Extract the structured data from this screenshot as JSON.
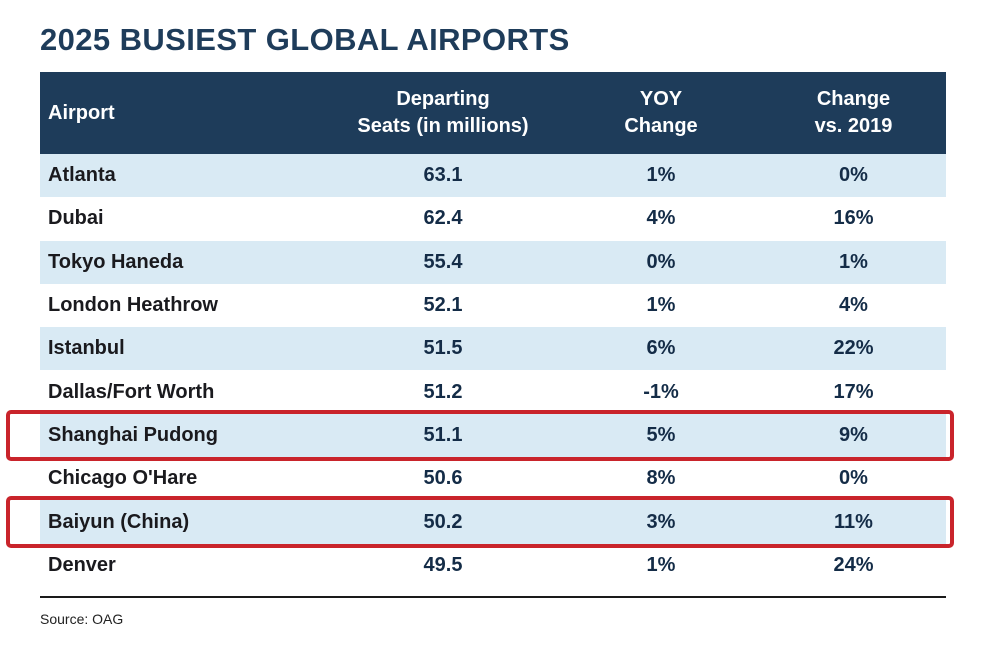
{
  "colors": {
    "header-bg": "#1e3c5a",
    "row-alt": "#d9eaf4",
    "highlight": "#c9242b",
    "navy": "#1e3c5a",
    "text": "#1a1a1e"
  },
  "chart_data": {
    "type": "table",
    "title": "2025 BUSIEST GLOBAL AIRPORTS",
    "source": "Source: OAG",
    "columns": [
      {
        "label_lines": [
          "Airport"
        ]
      },
      {
        "label_lines": [
          "Departing",
          "Seats  (in millions)"
        ]
      },
      {
        "label_lines": [
          "YOY",
          "Change"
        ]
      },
      {
        "label_lines": [
          "Change",
          "vs. 2019"
        ]
      }
    ],
    "rows": [
      {
        "airport": "Atlanta",
        "seats": "63.1",
        "yoy": "1%",
        "vs2019": "0%",
        "highlighted": false
      },
      {
        "airport": "Dubai",
        "seats": "62.4",
        "yoy": "4%",
        "vs2019": "16%",
        "highlighted": false
      },
      {
        "airport": "Tokyo Haneda",
        "seats": "55.4",
        "yoy": "0%",
        "vs2019": "1%",
        "highlighted": false
      },
      {
        "airport": "London Heathrow",
        "seats": "52.1",
        "yoy": "1%",
        "vs2019": "4%",
        "highlighted": false
      },
      {
        "airport": "Istanbul",
        "seats": "51.5",
        "yoy": "6%",
        "vs2019": "22%",
        "highlighted": false
      },
      {
        "airport": "Dallas/Fort Worth",
        "seats": "51.2",
        "yoy": "-1%",
        "vs2019": "17%",
        "highlighted": false
      },
      {
        "airport": "Shanghai Pudong",
        "seats": "51.1",
        "yoy": "5%",
        "vs2019": "9%",
        "highlighted": true
      },
      {
        "airport": "Chicago O'Hare",
        "seats": "50.6",
        "yoy": "8%",
        "vs2019": "0%",
        "highlighted": false
      },
      {
        "airport": "Baiyun (China)",
        "seats": "50.2",
        "yoy": "3%",
        "vs2019": "11%",
        "highlighted": true
      },
      {
        "airport": "Denver",
        "seats": "49.5",
        "yoy": "1%",
        "vs2019": "24%",
        "highlighted": false
      }
    ],
    "highlighted_rows": [
      "Shanghai Pudong",
      "Baiyun (China)"
    ]
  }
}
